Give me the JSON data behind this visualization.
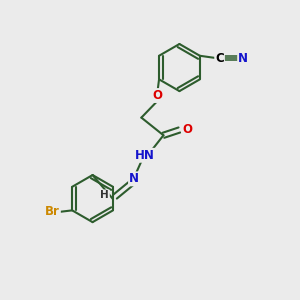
{
  "bg_color": "#ebebeb",
  "bond_color": "#2d5c2d",
  "bond_width": 1.5,
  "atom_colors": {
    "O": "#dd0000",
    "N": "#1414cc",
    "Br": "#cc8800",
    "C": "#000000",
    "H": "#333333"
  },
  "font_size": 8.5,
  "fig_size": [
    3.0,
    3.0
  ],
  "dpi": 100
}
